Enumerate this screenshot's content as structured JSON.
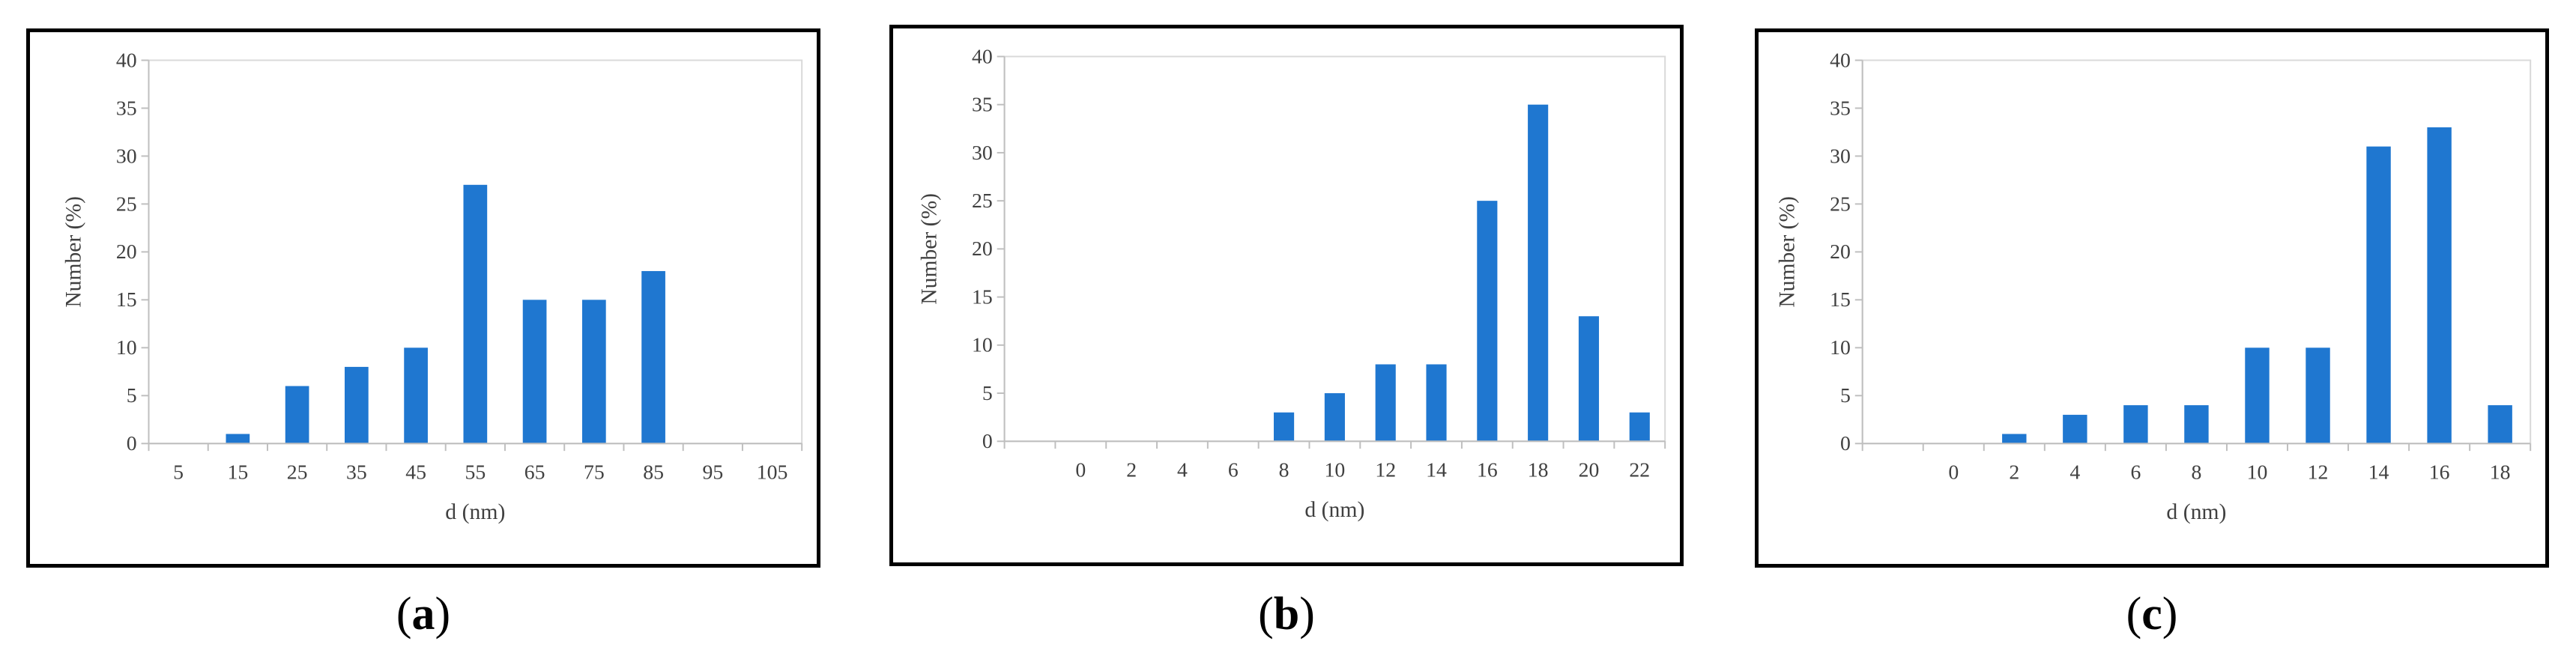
{
  "chart_data": [
    {
      "type": "bar",
      "categories": [
        "5",
        "15",
        "25",
        "35",
        "45",
        "55",
        "65",
        "75",
        "85",
        "95",
        "105"
      ],
      "values": [
        0,
        1,
        6,
        8,
        10,
        27,
        15,
        15,
        18,
        0,
        0
      ],
      "xlabel": "d (nm)",
      "ylabel": "Number (%)",
      "ylim": [
        0,
        40
      ],
      "yticks": [
        "0",
        "5",
        "10",
        "15",
        "20",
        "25",
        "30",
        "35",
        "40"
      ],
      "bar_color": "#1f77d0",
      "grid": false,
      "caption_letter": "a"
    },
    {
      "type": "bar",
      "categories": [
        "",
        "0",
        "2",
        "4",
        "6",
        "8",
        "10",
        "12",
        "14",
        "16",
        "18",
        "20",
        "22"
      ],
      "values": [
        0,
        0,
        0,
        0,
        0,
        3,
        5,
        8,
        8,
        25,
        35,
        13,
        3
      ],
      "xlabel": "d (nm)",
      "ylabel": "Number (%)",
      "ylim": [
        0,
        40
      ],
      "yticks": [
        "0",
        "5",
        "10",
        "15",
        "20",
        "25",
        "30",
        "35",
        "40"
      ],
      "bar_color": "#1f77d0",
      "grid": false,
      "caption_letter": "b"
    },
    {
      "type": "bar",
      "categories": [
        "",
        "0",
        "2",
        "4",
        "6",
        "8",
        "10",
        "12",
        "14",
        "16",
        "18"
      ],
      "values": [
        0,
        0,
        1,
        3,
        4,
        4,
        10,
        10,
        31,
        33,
        4
      ],
      "xlabel": "d (nm)",
      "ylabel": "Number (%)",
      "ylim": [
        0,
        40
      ],
      "yticks": [
        "0",
        "5",
        "10",
        "15",
        "20",
        "25",
        "30",
        "35",
        "40"
      ],
      "bar_color": "#1f77d0",
      "grid": false,
      "caption_letter": "c"
    }
  ]
}
